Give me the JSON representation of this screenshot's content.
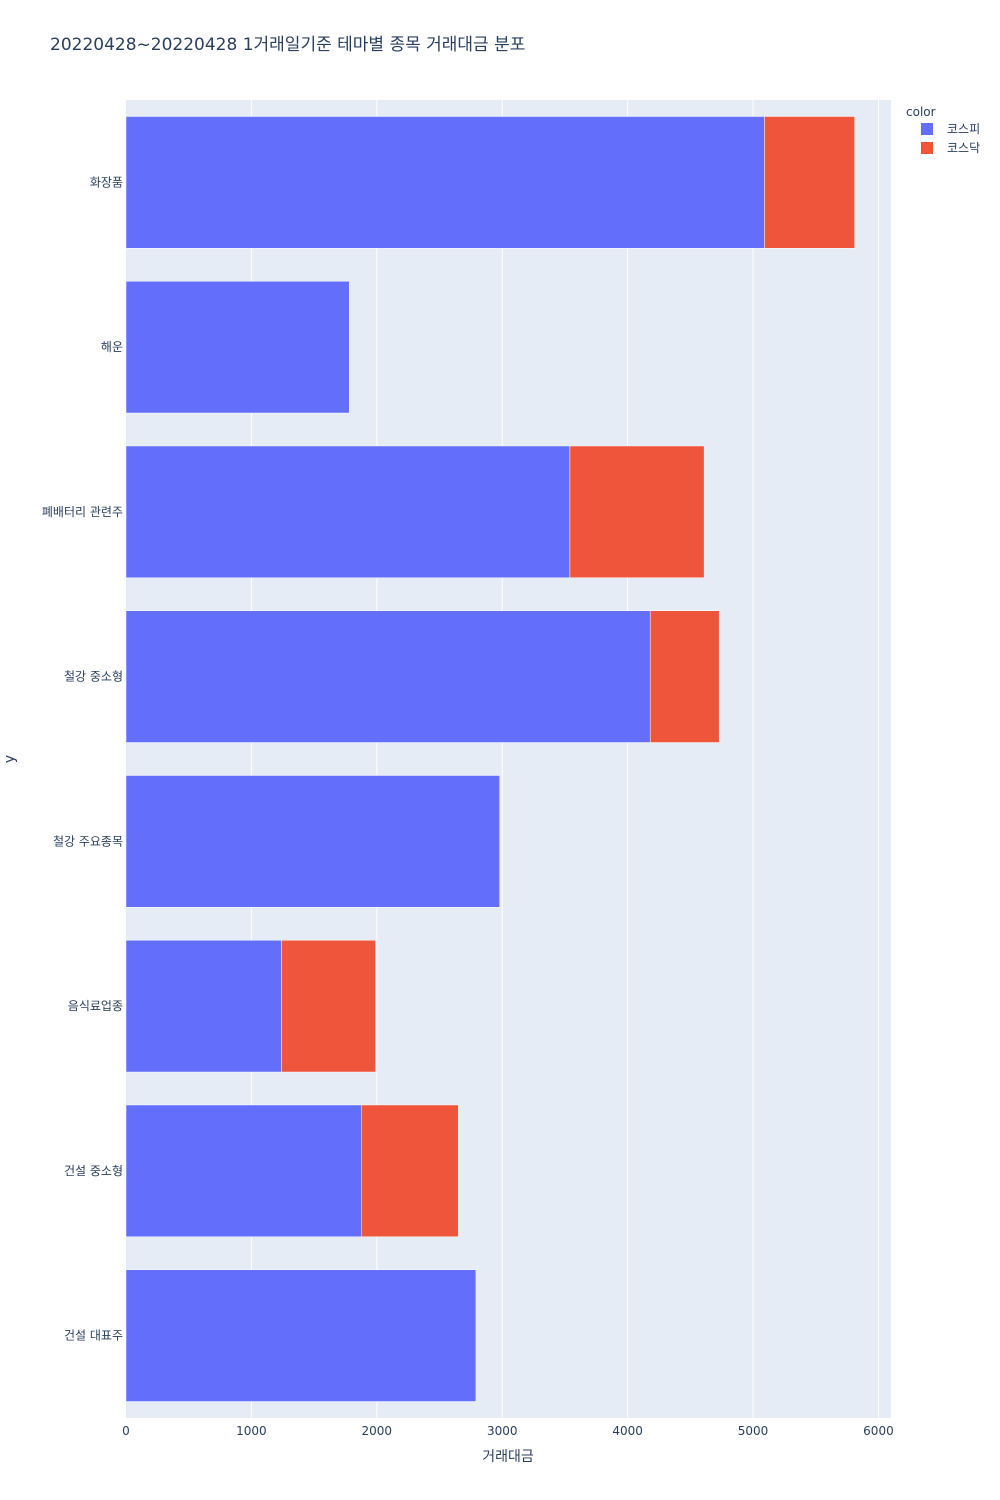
{
  "chart_data": {
    "type": "bar",
    "orientation": "horizontal",
    "barmode": "stack",
    "title": "20220428~20220428 1거래일기준 테마별 종목 거래대금 분포",
    "xlabel": "거래대금",
    "ylabel": "y",
    "xlim": [
      0,
      6100
    ],
    "xticks": [
      0,
      1000,
      2000,
      3000,
      4000,
      5000,
      6000
    ],
    "xtick_labels": [
      "0",
      "1000",
      "2000",
      "3000",
      "4000",
      "5000",
      "6000"
    ],
    "grid": true,
    "legend_title": "color",
    "legend_position": "top-right",
    "categories": [
      "화장품",
      "해운",
      "폐배터리 관련주",
      "철강 중소형",
      "철강 주요종목",
      "음식료업종",
      "건설 중소형",
      "건설 대표주"
    ],
    "series": [
      {
        "name": "코스피",
        "color": "#636efa",
        "values": [
          5090,
          1780,
          3540,
          4180,
          2980,
          1240,
          1880,
          2790
        ]
      },
      {
        "name": "코스닥",
        "color": "#ef553b",
        "values": [
          720,
          0,
          1070,
          550,
          0,
          750,
          770,
          0
        ]
      }
    ]
  }
}
